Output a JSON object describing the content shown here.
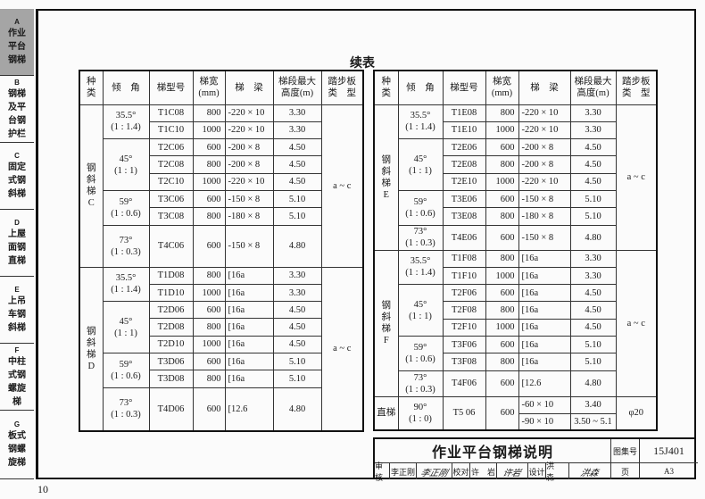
{
  "sidebar": {
    "sections": [
      {
        "letter": "A",
        "lines": [
          "作业",
          "平台",
          "钢梯"
        ],
        "active": true
      },
      {
        "letter": "B",
        "lines": [
          "钢梯",
          "及平",
          "台钢",
          "护栏"
        ],
        "active": false
      },
      {
        "letter": "C",
        "lines": [
          "固定",
          "式钢",
          "斜梯"
        ],
        "active": false
      },
      {
        "letter": "D",
        "lines": [
          "上屋",
          "面钢",
          "直梯"
        ],
        "active": false
      },
      {
        "letter": "E",
        "lines": [
          "上吊",
          "车钢",
          "斜梯"
        ],
        "active": false
      },
      {
        "letter": "F",
        "lines": [
          "中柱",
          "式钢",
          "螺旋",
          "梯"
        ],
        "active": false
      },
      {
        "letter": "G",
        "lines": [
          "板式",
          "钢螺",
          "旋梯"
        ],
        "active": false
      }
    ]
  },
  "caption": "续表",
  "headers": [
    "种\n类",
    "倾　角",
    "梯型号",
    "梯宽\n(mm)",
    "梯　梁",
    "梯段最大\n高度(m)",
    "踏步板\n类　型"
  ],
  "tables": [
    {
      "groups": [
        {
          "category": [
            "钢",
            "斜",
            "梯",
            "C"
          ],
          "tread": "a ~ c",
          "angles": [
            {
              "angle": "35.5°",
              "ratio": "(1 : 1.4)",
              "rows": [
                [
                  "T1C08",
                  "800",
                  "-220 × 10",
                  "3.30"
                ],
                [
                  "T1C10",
                  "1000",
                  "-220 × 10",
                  "3.30"
                ]
              ]
            },
            {
              "angle": "45°",
              "ratio": "(1 : 1)",
              "rows": [
                [
                  "T2C06",
                  "600",
                  "-200 × 8",
                  "4.50"
                ],
                [
                  "T2C08",
                  "800",
                  "-200 × 8",
                  "4.50"
                ],
                [
                  "T2C10",
                  "1000",
                  "-220 × 10",
                  "4.50"
                ]
              ]
            },
            {
              "angle": "59°",
              "ratio": "(1 : 0.6)",
              "rows": [
                [
                  "T3C06",
                  "600",
                  "-150 × 8",
                  "5.10"
                ],
                [
                  "T3C08",
                  "800",
                  "-180 × 8",
                  "5.10"
                ]
              ]
            },
            {
              "angle": "73°",
              "ratio": "(1 : 0.3)",
              "rows": [
                [
                  "T4C06",
                  "600",
                  "-150 × 8",
                  "4.80"
                ]
              ]
            }
          ]
        },
        {
          "category": [
            "钢",
            "斜",
            "梯",
            "D"
          ],
          "tread": "a ~ c",
          "angles": [
            {
              "angle": "35.5°",
              "ratio": "(1 : 1.4)",
              "rows": [
                [
                  "T1D08",
                  "800",
                  "[16a",
                  "3.30"
                ],
                [
                  "T1D10",
                  "1000",
                  "[16a",
                  "3.30"
                ]
              ]
            },
            {
              "angle": "45°",
              "ratio": "(1 : 1)",
              "rows": [
                [
                  "T2D06",
                  "600",
                  "[16a",
                  "4.50"
                ],
                [
                  "T2D08",
                  "800",
                  "[16a",
                  "4.50"
                ],
                [
                  "T2D10",
                  "1000",
                  "[16a",
                  "4.50"
                ]
              ]
            },
            {
              "angle": "59°",
              "ratio": "(1 : 0.6)",
              "rows": [
                [
                  "T3D06",
                  "600",
                  "[16a",
                  "5.10"
                ],
                [
                  "T3D08",
                  "800",
                  "[16a",
                  "5.10"
                ]
              ]
            },
            {
              "angle": "73°",
              "ratio": "(1 : 0.3)",
              "rows": [
                [
                  "T4D06",
                  "600",
                  "[12.6",
                  "4.80"
                ]
              ]
            }
          ]
        }
      ]
    },
    {
      "groups": [
        {
          "category": [
            "钢",
            "斜",
            "梯",
            "E"
          ],
          "tread": "a ~ c",
          "angles": [
            {
              "angle": "35.5°",
              "ratio": "(1 : 1.4)",
              "rows": [
                [
                  "T1E08",
                  "800",
                  "-220 × 10",
                  "3.30"
                ],
                [
                  "T1E10",
                  "1000",
                  "-220 × 10",
                  "3.30"
                ]
              ]
            },
            {
              "angle": "45°",
              "ratio": "(1 : 1)",
              "rows": [
                [
                  "T2E06",
                  "600",
                  "-200 × 8",
                  "4.50"
                ],
                [
                  "T2E08",
                  "800",
                  "-200 × 8",
                  "4.50"
                ],
                [
                  "T2E10",
                  "1000",
                  "-220 × 10",
                  "4.50"
                ]
              ]
            },
            {
              "angle": "59°",
              "ratio": "(1 : 0.6)",
              "rows": [
                [
                  "T3E06",
                  "600",
                  "-150 × 8",
                  "5.10"
                ],
                [
                  "T3E08",
                  "800",
                  "-180 × 8",
                  "5.10"
                ]
              ]
            },
            {
              "angle": "73°",
              "ratio": "(1 : 0.3)",
              "rows": [
                [
                  "T4E06",
                  "600",
                  "-150 × 8",
                  "4.80"
                ]
              ]
            }
          ]
        },
        {
          "category": [
            "钢",
            "斜",
            "梯",
            "F"
          ],
          "tread": "a ~ c",
          "angles": [
            {
              "angle": "35.5°",
              "ratio": "(1 : 1.4)",
              "rows": [
                [
                  "T1F08",
                  "800",
                  "[16a",
                  "3.30"
                ],
                [
                  "T1F10",
                  "1000",
                  "[16a",
                  "3.30"
                ]
              ]
            },
            {
              "angle": "45°",
              "ratio": "(1 : 1)",
              "rows": [
                [
                  "T2F06",
                  "600",
                  "[16a",
                  "4.50"
                ],
                [
                  "T2F08",
                  "800",
                  "[16a",
                  "4.50"
                ],
                [
                  "T2F10",
                  "1000",
                  "[16a",
                  "4.50"
                ]
              ]
            },
            {
              "angle": "59°",
              "ratio": "(1 : 0.6)",
              "rows": [
                [
                  "T3F06",
                  "600",
                  "[16a",
                  "5.10"
                ],
                [
                  "T3F08",
                  "800",
                  "[16a",
                  "5.10"
                ]
              ]
            },
            {
              "angle": "73°",
              "ratio": "(1 : 0.3)",
              "rows": [
                [
                  "T4F06",
                  "600",
                  "[12.6",
                  "4.80"
                ]
              ]
            }
          ]
        },
        {
          "category": [
            "直梯"
          ],
          "tread": "φ20",
          "angles": [
            {
              "angle": "90°",
              "ratio": "(1 : 0)",
              "rows": [
                [
                  "T5 06",
                  "600",
                  "-60 × 10",
                  "3.40"
                ],
                [
                  "",
                  "",
                  "-90 × 10",
                  "3.50 ~ 5.1"
                ]
              ]
            }
          ]
        }
      ]
    }
  ],
  "title_block": {
    "title": "作业平台钢梯说明",
    "atlas_label": "图集号",
    "atlas_no": "15J401",
    "review_label": "审核",
    "reviewer": "李正刚",
    "reviewer_sig": "李正刚",
    "check_label": "校对",
    "checker": "许　岩",
    "checker_sig": "许岩",
    "design_label": "设计",
    "designer": "洪　森",
    "designer_sig": "洪森",
    "page_label": "页",
    "page": "A3"
  },
  "page_number": "10"
}
